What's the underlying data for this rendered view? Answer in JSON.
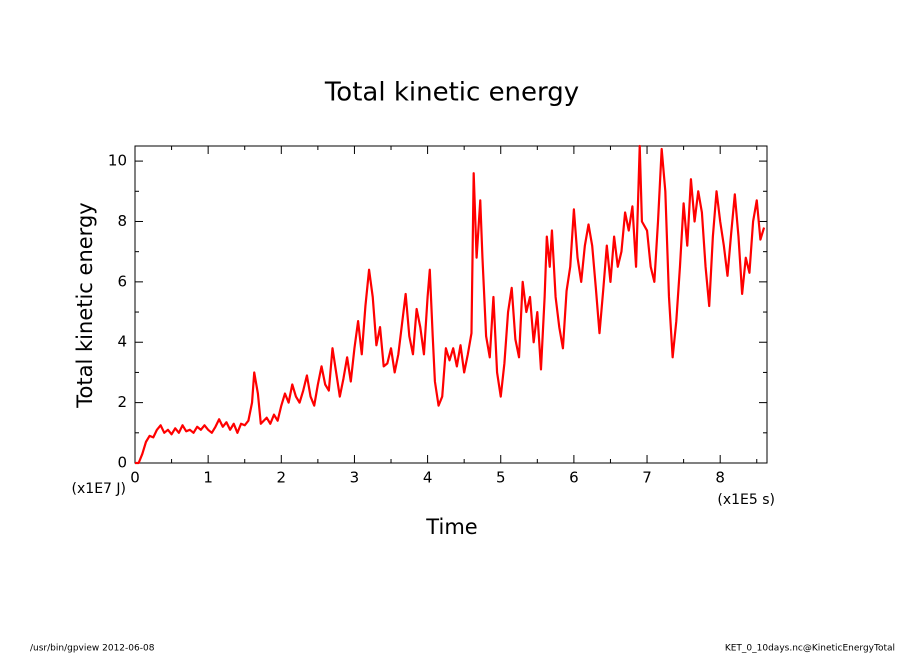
{
  "chart_data": {
    "type": "line",
    "title": "Total kinetic energy",
    "ylabel": "Total kinetic energy",
    "xlabel": "Time",
    "yunit": "(x1E7 J)",
    "xunit": "(x1E5 s)",
    "footer_left": "/usr/bin/gpview  2012-06-08",
    "footer_right": "KET_0_10days.nc@KineticEnergyTotal",
    "xlim": [
      0,
      8.64
    ],
    "ylim": [
      0,
      10.5
    ],
    "xticks": [
      0,
      1,
      2,
      3,
      4,
      5,
      6,
      7,
      8
    ],
    "yticks": [
      0,
      2,
      4,
      6,
      8,
      10
    ],
    "xminorticks": [
      0.5,
      1.5,
      2.5,
      3.5,
      4.5,
      5.5,
      6.5,
      7.5,
      8.5
    ],
    "yminorticks": [
      1,
      3,
      5,
      7,
      9
    ],
    "series": [
      {
        "name": "Total kinetic energy",
        "color": "#ff0000",
        "x": [
          0,
          0.05,
          0.1,
          0.15,
          0.2,
          0.25,
          0.3,
          0.35,
          0.4,
          0.45,
          0.5,
          0.55,
          0.6,
          0.65,
          0.7,
          0.75,
          0.8,
          0.85,
          0.9,
          0.95,
          1.0,
          1.05,
          1.1,
          1.15,
          1.2,
          1.25,
          1.3,
          1.35,
          1.4,
          1.45,
          1.5,
          1.55,
          1.6,
          1.63,
          1.68,
          1.72,
          1.8,
          1.85,
          1.9,
          1.95,
          2.0,
          2.05,
          2.1,
          2.15,
          2.2,
          2.25,
          2.3,
          2.35,
          2.4,
          2.45,
          2.5,
          2.55,
          2.6,
          2.65,
          2.7,
          2.75,
          2.8,
          2.85,
          2.9,
          2.95,
          3.0,
          3.05,
          3.1,
          3.15,
          3.2,
          3.25,
          3.3,
          3.35,
          3.4,
          3.45,
          3.5,
          3.55,
          3.6,
          3.65,
          3.7,
          3.75,
          3.8,
          3.85,
          3.9,
          3.95,
          4.0,
          4.03,
          4.07,
          4.1,
          4.15,
          4.2,
          4.25,
          4.3,
          4.35,
          4.4,
          4.45,
          4.5,
          4.55,
          4.6,
          4.63,
          4.67,
          4.72,
          4.75,
          4.8,
          4.85,
          4.9,
          4.95,
          5.0,
          5.05,
          5.1,
          5.15,
          5.2,
          5.25,
          5.3,
          5.35,
          5.4,
          5.45,
          5.5,
          5.55,
          5.6,
          5.63,
          5.67,
          5.7,
          5.75,
          5.8,
          5.85,
          5.9,
          5.95,
          6.0,
          6.05,
          6.1,
          6.15,
          6.2,
          6.25,
          6.3,
          6.35,
          6.4,
          6.45,
          6.5,
          6.55,
          6.6,
          6.65,
          6.7,
          6.75,
          6.8,
          6.85,
          6.9,
          6.93,
          7.0,
          7.05,
          7.1,
          7.15,
          7.2,
          7.25,
          7.3,
          7.35,
          7.4,
          7.45,
          7.5,
          7.55,
          7.6,
          7.65,
          7.7,
          7.75,
          7.8,
          7.85,
          7.9,
          7.95,
          8.0,
          8.05,
          8.1,
          8.15,
          8.2,
          8.25,
          8.3,
          8.35,
          8.4,
          8.45,
          8.5,
          8.55,
          8.6
        ],
        "values": [
          0,
          0,
          0.3,
          0.7,
          0.9,
          0.85,
          1.1,
          1.25,
          1.0,
          1.1,
          0.95,
          1.15,
          1.0,
          1.25,
          1.05,
          1.1,
          1.0,
          1.2,
          1.1,
          1.25,
          1.1,
          1.0,
          1.2,
          1.45,
          1.2,
          1.35,
          1.1,
          1.3,
          1.0,
          1.3,
          1.25,
          1.4,
          2.0,
          3.0,
          2.3,
          1.3,
          1.5,
          1.3,
          1.6,
          1.4,
          1.9,
          2.3,
          2.0,
          2.6,
          2.2,
          2.0,
          2.4,
          2.9,
          2.2,
          1.9,
          2.6,
          3.2,
          2.6,
          2.4,
          3.8,
          3.0,
          2.2,
          2.8,
          3.5,
          2.7,
          3.8,
          4.7,
          3.6,
          5.2,
          6.4,
          5.5,
          3.9,
          4.5,
          3.2,
          3.3,
          3.8,
          3.0,
          3.6,
          4.6,
          5.6,
          4.2,
          3.6,
          5.1,
          4.5,
          3.6,
          5.5,
          6.4,
          4.2,
          2.7,
          1.9,
          2.2,
          3.8,
          3.4,
          3.8,
          3.2,
          3.9,
          3.0,
          3.6,
          4.3,
          9.6,
          6.8,
          8.7,
          6.8,
          4.2,
          3.5,
          5.5,
          3.0,
          2.2,
          3.3,
          5.0,
          5.8,
          4.1,
          3.5,
          6.0,
          5.0,
          5.5,
          4.0,
          5.0,
          3.1,
          5.5,
          7.5,
          6.5,
          7.7,
          5.5,
          4.5,
          3.8,
          5.7,
          6.5,
          8.4,
          6.8,
          6.0,
          7.2,
          7.9,
          7.2,
          5.8,
          4.3,
          5.7,
          7.2,
          6.0,
          7.5,
          6.5,
          7.0,
          8.3,
          7.7,
          8.5,
          6.5,
          10.5,
          8.0,
          7.7,
          6.5,
          6.0,
          8.0,
          10.4,
          9.0,
          5.5,
          3.5,
          4.7,
          6.5,
          8.6,
          7.2,
          9.4,
          8.0,
          9.0,
          8.3,
          6.5,
          5.2,
          7.5,
          9.0,
          8.0,
          7.2,
          6.2,
          7.6,
          8.9,
          7.5,
          5.6,
          6.8,
          6.3,
          8.0,
          8.7,
          7.4,
          7.8
        ]
      }
    ]
  }
}
